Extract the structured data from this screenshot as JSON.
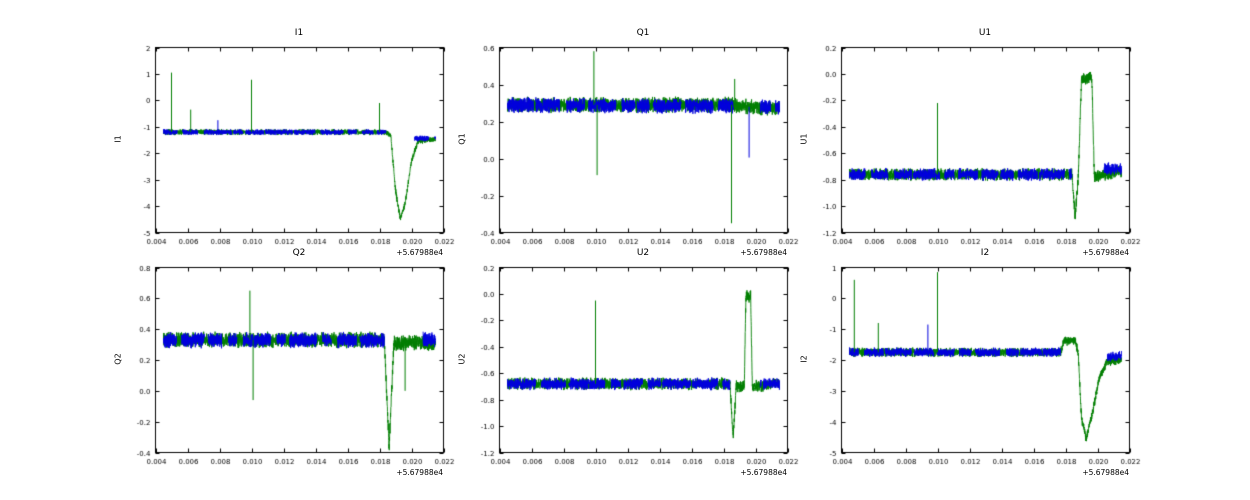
{
  "figure": {
    "background": "#ffffff"
  },
  "chart_data": [
    {
      "type": "line",
      "title": "I1",
      "ylabel": "I1",
      "xlabel": "",
      "xlim": [
        0.004,
        0.022
      ],
      "ylim": [
        -5,
        2
      ],
      "x_offset_label": "+5.67988e4",
      "xticks": [
        0.004,
        0.006,
        0.008,
        0.01,
        0.012,
        0.014,
        0.016,
        0.018,
        0.02,
        0.022
      ],
      "xtick_labels": [
        "0.004",
        "0.006",
        "0.008",
        "0.010",
        "0.012",
        "0.014",
        "0.016",
        "0.018",
        "0.020",
        "0.022"
      ],
      "yticks": [
        -5,
        -4,
        -3,
        -2,
        -1,
        0,
        1,
        2
      ],
      "ytick_labels": [
        "-5",
        "-4",
        "-3",
        "-2",
        "-1",
        "0",
        "1",
        "2"
      ],
      "series": [
        {
          "name": "green",
          "color": "#007f00",
          "noise": 0.12,
          "x_range": [
            0.0045,
            0.0215
          ],
          "segmented": false,
          "profile": [
            [
              0.0045,
              -1.2
            ],
            [
              0.0184,
              -1.2
            ],
            [
              0.0187,
              -1.3
            ],
            [
              0.019,
              -3.4
            ],
            [
              0.0193,
              -4.5
            ],
            [
              0.0196,
              -3.9
            ],
            [
              0.02,
              -2.3
            ],
            [
              0.0204,
              -1.55
            ],
            [
              0.0215,
              -1.45
            ]
          ]
        },
        {
          "name": "blue",
          "color": "#0000dd",
          "noise": 0.12,
          "x_range": [
            0.0045,
            0.0215
          ],
          "segmented": true,
          "gap": [
            0.0184,
            0.0202
          ],
          "profile": [
            [
              0.0045,
              -1.2
            ],
            [
              0.0184,
              -1.2
            ],
            [
              0.0204,
              -1.45
            ],
            [
              0.0215,
              -1.42
            ]
          ]
        }
      ],
      "spikes": [
        {
          "x": 0.005,
          "y": 1.05,
          "y0": -1.2,
          "color": "#007f00"
        },
        {
          "x": 0.0062,
          "y": -0.35,
          "y0": -1.2,
          "color": "#007f00"
        },
        {
          "x": 0.0079,
          "y": -0.75,
          "y0": -1.2,
          "color": "#0000dd"
        },
        {
          "x": 0.01,
          "y": 0.78,
          "y0": -1.2,
          "color": "#007f00"
        },
        {
          "x": 0.018,
          "y": -0.1,
          "y0": -1.2,
          "color": "#007f00"
        }
      ]
    },
    {
      "type": "line",
      "title": "Q1",
      "ylabel": "Q1",
      "xlabel": "",
      "xlim": [
        0.004,
        0.022
      ],
      "ylim": [
        -0.4,
        0.6
      ],
      "x_offset_label": "+5.67988e4",
      "xticks": [
        0.004,
        0.006,
        0.008,
        0.01,
        0.012,
        0.014,
        0.016,
        0.018,
        0.02,
        0.022
      ],
      "xtick_labels": [
        "0.004",
        "0.006",
        "0.008",
        "0.010",
        "0.012",
        "0.014",
        "0.016",
        "0.018",
        "0.020",
        "0.022"
      ],
      "yticks": [
        -0.4,
        -0.2,
        0.0,
        0.2,
        0.4,
        0.6
      ],
      "ytick_labels": [
        "-0.4",
        "-0.2",
        "0.0",
        "0.2",
        "0.4",
        "0.6"
      ],
      "series": [
        {
          "name": "green",
          "color": "#007f00",
          "noise": 0.045,
          "x_range": [
            0.0045,
            0.0215
          ],
          "segmented": false,
          "profile": [
            [
              0.0045,
              0.29
            ],
            [
              0.0185,
              0.29
            ],
            [
              0.0195,
              0.28
            ],
            [
              0.0215,
              0.27
            ]
          ]
        },
        {
          "name": "blue",
          "color": "#0000dd",
          "noise": 0.045,
          "x_range": [
            0.0045,
            0.0215
          ],
          "segmented": true,
          "gap": [
            0.0186,
            0.0203
          ],
          "profile": [
            [
              0.0045,
              0.29
            ],
            [
              0.0215,
              0.28
            ]
          ]
        }
      ],
      "spikes": [
        {
          "x": 0.0099,
          "y": 0.58,
          "y0": 0.29,
          "color": "#007f00"
        },
        {
          "x": 0.0101,
          "y": -0.09,
          "y0": 0.29,
          "color": "#007f00"
        },
        {
          "x": 0.0185,
          "y": -0.35,
          "y0": 0.29,
          "color": "#007f00"
        },
        {
          "x": 0.0187,
          "y": 0.43,
          "y0": 0.29,
          "color": "#007f00"
        },
        {
          "x": 0.0196,
          "y": 0.005,
          "y0": 0.28,
          "color": "#0000dd"
        }
      ]
    },
    {
      "type": "line",
      "title": "U1",
      "ylabel": "U1",
      "xlabel": "",
      "xlim": [
        0.004,
        0.022
      ],
      "ylim": [
        -1.2,
        0.2
      ],
      "x_offset_label": "+5.67988e4",
      "xticks": [
        0.004,
        0.006,
        0.008,
        0.01,
        0.012,
        0.014,
        0.016,
        0.018,
        0.02,
        0.022
      ],
      "xtick_labels": [
        "0.004",
        "0.006",
        "0.008",
        "0.010",
        "0.012",
        "0.014",
        "0.016",
        "0.018",
        "0.020",
        "0.022"
      ],
      "yticks": [
        -1.2,
        -1.0,
        -0.8,
        -0.6,
        -0.4,
        -0.2,
        0.0,
        0.2
      ],
      "ytick_labels": [
        "-1.2",
        "-1.0",
        "-0.8",
        "-0.6",
        "-0.4",
        "-0.2",
        "0.0",
        "0.2"
      ],
      "series": [
        {
          "name": "green",
          "color": "#007f00",
          "noise": 0.05,
          "x_range": [
            0.0045,
            0.0215
          ],
          "segmented": false,
          "profile": [
            [
              0.0045,
              -0.76
            ],
            [
              0.0184,
              -0.76
            ],
            [
              0.0186,
              -1.08
            ],
            [
              0.0188,
              -0.78
            ],
            [
              0.019,
              -0.03
            ],
            [
              0.01965,
              -0.03
            ],
            [
              0.0198,
              -0.78
            ],
            [
              0.0215,
              -0.74
            ]
          ]
        },
        {
          "name": "blue",
          "color": "#0000dd",
          "noise": 0.05,
          "x_range": [
            0.0045,
            0.0215
          ],
          "segmented": true,
          "gap": [
            0.0184,
            0.0204
          ],
          "profile": [
            [
              0.0045,
              -0.76
            ],
            [
              0.0184,
              -0.76
            ],
            [
              0.0205,
              -0.72
            ],
            [
              0.0215,
              -0.72
            ]
          ]
        }
      ],
      "spikes": [
        {
          "x": 0.01,
          "y": -0.22,
          "y0": -0.76,
          "color": "#007f00"
        }
      ]
    },
    {
      "type": "line",
      "title": "Q2",
      "ylabel": "Q2",
      "xlabel": "",
      "xlim": [
        0.004,
        0.022
      ],
      "ylim": [
        -0.4,
        0.8
      ],
      "x_offset_label": "+5.67988e4",
      "xticks": [
        0.004,
        0.006,
        0.008,
        0.01,
        0.012,
        0.014,
        0.016,
        0.018,
        0.02,
        0.022
      ],
      "xtick_labels": [
        "0.004",
        "0.006",
        "0.008",
        "0.010",
        "0.012",
        "0.014",
        "0.016",
        "0.018",
        "0.020",
        "0.022"
      ],
      "yticks": [
        -0.4,
        -0.2,
        0.0,
        0.2,
        0.4,
        0.6,
        0.8
      ],
      "ytick_labels": [
        "-0.4",
        "-0.2",
        "0.0",
        "0.2",
        "0.4",
        "0.6",
        "0.8"
      ],
      "series": [
        {
          "name": "green",
          "color": "#007f00",
          "noise": 0.055,
          "x_range": [
            0.0045,
            0.0215
          ],
          "segmented": false,
          "profile": [
            [
              0.0045,
              0.33
            ],
            [
              0.0183,
              0.33
            ],
            [
              0.0186,
              -0.37
            ],
            [
              0.0189,
              0.31
            ],
            [
              0.0215,
              0.31
            ]
          ]
        },
        {
          "name": "blue",
          "color": "#0000dd",
          "noise": 0.055,
          "x_range": [
            0.0045,
            0.0215
          ],
          "segmented": true,
          "gap": [
            0.0183,
            0.0206
          ],
          "profile": [
            [
              0.0045,
              0.33
            ],
            [
              0.0215,
              0.33
            ]
          ]
        }
      ],
      "spikes": [
        {
          "x": 0.0099,
          "y": 0.65,
          "y0": 0.33,
          "color": "#007f00"
        },
        {
          "x": 0.0101,
          "y": -0.06,
          "y0": 0.33,
          "color": "#007f00"
        },
        {
          "x": 0.0196,
          "y": 0.0,
          "y0": 0.31,
          "color": "#007f00"
        }
      ]
    },
    {
      "type": "line",
      "title": "U2",
      "ylabel": "U2",
      "xlabel": "",
      "xlim": [
        0.004,
        0.022
      ],
      "ylim": [
        -1.2,
        0.2
      ],
      "x_offset_label": "+5.67988e4",
      "xticks": [
        0.004,
        0.006,
        0.008,
        0.01,
        0.012,
        0.014,
        0.016,
        0.018,
        0.02,
        0.022
      ],
      "xtick_labels": [
        "0.004",
        "0.006",
        "0.008",
        "0.010",
        "0.012",
        "0.014",
        "0.016",
        "0.018",
        "0.020",
        "0.022"
      ],
      "yticks": [
        -1.2,
        -1.0,
        -0.8,
        -0.6,
        -0.4,
        -0.2,
        0.0,
        0.2
      ],
      "ytick_labels": [
        "-1.2",
        "-1.0",
        "-0.8",
        "-0.6",
        "-0.4",
        "-0.2",
        "0.0",
        "0.2"
      ],
      "series": [
        {
          "name": "green",
          "color": "#007f00",
          "noise": 0.05,
          "x_range": [
            0.0045,
            0.0215
          ],
          "segmented": false,
          "profile": [
            [
              0.0045,
              -0.68
            ],
            [
              0.0184,
              -0.68
            ],
            [
              0.0186,
              -1.08
            ],
            [
              0.0188,
              -0.7
            ],
            [
              0.0193,
              -0.7
            ],
            [
              0.0194,
              -0.02
            ],
            [
              0.0197,
              -0.02
            ],
            [
              0.0198,
              -0.7
            ],
            [
              0.0215,
              -0.68
            ]
          ]
        },
        {
          "name": "blue",
          "color": "#0000dd",
          "noise": 0.05,
          "x_range": [
            0.0045,
            0.0215
          ],
          "segmented": true,
          "gap": [
            0.0184,
            0.0203
          ],
          "profile": [
            [
              0.0045,
              -0.68
            ],
            [
              0.0215,
              -0.68
            ]
          ]
        }
      ],
      "spikes": [
        {
          "x": 0.01,
          "y": -0.05,
          "y0": -0.68,
          "color": "#007f00"
        }
      ]
    },
    {
      "type": "line",
      "title": "I2",
      "ylabel": "I2",
      "xlabel": "",
      "xlim": [
        0.004,
        0.022
      ],
      "ylim": [
        -5,
        1
      ],
      "x_offset_label": "+5.67988e4",
      "xticks": [
        0.004,
        0.006,
        0.008,
        0.01,
        0.012,
        0.014,
        0.016,
        0.018,
        0.02,
        0.022
      ],
      "xtick_labels": [
        "0.004",
        "0.006",
        "0.008",
        "0.010",
        "0.012",
        "0.014",
        "0.016",
        "0.018",
        "0.020",
        "0.022"
      ],
      "yticks": [
        -5,
        -4,
        -3,
        -2,
        -1,
        0,
        1
      ],
      "ytick_labels": [
        "-5",
        "-4",
        "-3",
        "-2",
        "-1",
        "0",
        "1"
      ],
      "series": [
        {
          "name": "green",
          "color": "#007f00",
          "noise": 0.16,
          "x_range": [
            0.0045,
            0.0215
          ],
          "segmented": false,
          "profile": [
            [
              0.0045,
              -1.75
            ],
            [
              0.0177,
              -1.75
            ],
            [
              0.0179,
              -1.4
            ],
            [
              0.0186,
              -1.35
            ],
            [
              0.0188,
              -1.8
            ],
            [
              0.019,
              -3.9
            ],
            [
              0.0193,
              -4.55
            ],
            [
              0.0197,
              -3.7
            ],
            [
              0.0201,
              -2.6
            ],
            [
              0.0206,
              -2.05
            ],
            [
              0.0215,
              -2.0
            ]
          ]
        },
        {
          "name": "blue",
          "color": "#0000dd",
          "noise": 0.16,
          "x_range": [
            0.0045,
            0.0215
          ],
          "segmented": true,
          "gap": [
            0.0177,
            0.0206
          ],
          "profile": [
            [
              0.0045,
              -1.75
            ],
            [
              0.0177,
              -1.75
            ],
            [
              0.0207,
              -1.9
            ],
            [
              0.0215,
              -1.85
            ]
          ]
        }
      ],
      "spikes": [
        {
          "x": 0.0048,
          "y": 0.6,
          "y0": -1.75,
          "color": "#007f00"
        },
        {
          "x": 0.0063,
          "y": -0.8,
          "y0": -1.75,
          "color": "#007f00"
        },
        {
          "x": 0.0094,
          "y": -0.85,
          "y0": -1.75,
          "color": "#0000dd"
        },
        {
          "x": 0.01,
          "y": 0.85,
          "y0": -1.75,
          "color": "#007f00"
        }
      ]
    }
  ]
}
